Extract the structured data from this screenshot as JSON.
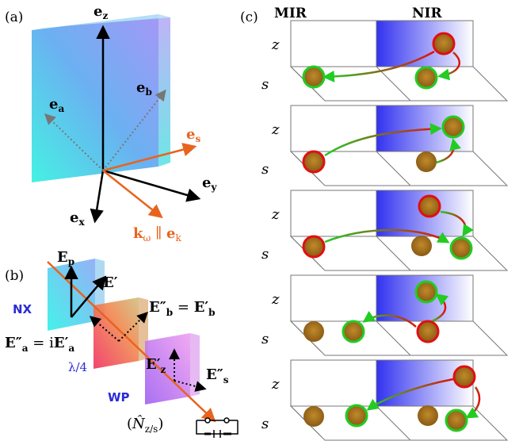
{
  "panel_a": {
    "label": "(a)",
    "vectors": {
      "ez": "e",
      "ez_sub": "z",
      "ea": "e",
      "ea_sub": "a",
      "eb": "e",
      "eb_sub": "b",
      "es": "e",
      "es_sub": "s",
      "ey": "e",
      "ey_sub": "y",
      "ex": "e",
      "ex_sub": "x",
      "kw": "k",
      "kw_sub": "ω",
      "kw_par": " ∥ ",
      "ek": "e",
      "ek_sub": "k"
    },
    "colors": {
      "accent": "#e8641e",
      "black": "#000000"
    }
  },
  "panel_b": {
    "label": "(b)",
    "nx_label": "NX",
    "wp_label": "WP",
    "lambda_label": "λ/4",
    "Ep": "E",
    "Ep_sub": "p",
    "Eprime": "E′",
    "Eb2": "E″",
    "Eb2_sub": "b",
    "Eb2_eq": " = ",
    "Eb1": "E′",
    "Eb1_sub": "b",
    "Ea2": "E″",
    "Ea2_sub": "a",
    "Ea2_eq": " = i",
    "Ea1": "E′",
    "Ea1_sub": "a",
    "Ez": "E′",
    "Ez_sub": "z",
    "Es": "E″",
    "Es_sub": "s",
    "detector_label_open": "(",
    "detector_N": "N̂",
    "detector_sub": "z/s",
    "detector_label_close": ")",
    "colors": {
      "nx_label": "#2b2bd6",
      "accent": "#e8641e"
    }
  },
  "panel_c": {
    "label": "(c)",
    "col_mir": "MIR",
    "col_nir": "NIR",
    "axis_z": "z",
    "axis_s": "s",
    "rows": 5,
    "colors": {
      "nir_blue": "#3232f0",
      "ball": "#a8741c",
      "ring_red": "#e01010",
      "ring_green": "#22cc22"
    }
  }
}
